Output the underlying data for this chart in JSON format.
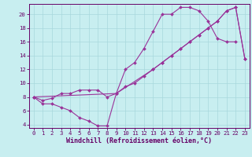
{
  "title": "",
  "xlabel": "Windchill (Refroidissement éolien,°C)",
  "ylabel": "",
  "bg_color": "#c8eef0",
  "grid_color": "#a8d8dc",
  "line_color": "#993399",
  "marker_color": "#993399",
  "xlim": [
    -0.5,
    23.5
  ],
  "ylim": [
    3.5,
    21.5
  ],
  "yticks": [
    4,
    6,
    8,
    10,
    12,
    14,
    16,
    18,
    20
  ],
  "xticks": [
    0,
    1,
    2,
    3,
    4,
    5,
    6,
    7,
    8,
    9,
    10,
    11,
    12,
    13,
    14,
    15,
    16,
    17,
    18,
    19,
    20,
    21,
    22,
    23
  ],
  "series1_x": [
    0,
    1,
    2,
    3,
    4,
    5,
    6,
    7,
    8,
    9,
    10,
    11,
    12,
    13,
    14,
    15,
    16,
    17,
    18,
    19,
    20,
    21,
    22
  ],
  "series1_y": [
    8,
    7,
    7,
    6.5,
    6,
    5,
    4.5,
    3.8,
    3.8,
    8.5,
    12,
    13,
    15,
    17.5,
    20,
    20,
    21,
    21,
    20.5,
    19,
    16.5,
    16,
    16
  ],
  "series2_x": [
    0,
    1,
    2,
    3,
    4,
    5,
    6,
    7,
    8,
    9,
    10,
    11,
    12,
    13,
    14,
    15,
    16,
    17,
    18,
    19,
    20,
    21,
    22,
    23
  ],
  "series2_y": [
    8,
    7.5,
    7.8,
    8.5,
    8.5,
    9,
    9,
    9,
    8,
    8.5,
    9.5,
    10,
    11,
    12,
    13,
    14,
    15,
    16,
    17,
    18,
    19,
    20.5,
    21,
    13.5
  ],
  "series3_x": [
    0,
    9,
    13,
    14,
    15,
    16,
    17,
    18,
    19,
    20,
    21,
    22,
    23
  ],
  "series3_y": [
    8,
    8.5,
    12,
    13,
    14,
    15,
    16,
    17,
    18,
    19,
    20.5,
    21,
    13.5
  ],
  "font_family": "monospace",
  "label_fontsize": 6.0,
  "tick_fontsize": 5.2
}
